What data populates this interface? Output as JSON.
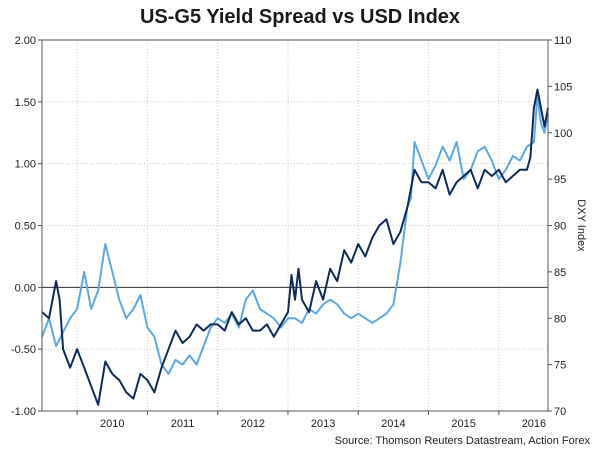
{
  "chart_data": {
    "type": "line",
    "title": "US-G5 Yield Spread vs USD Index",
    "source": "Source: Thomson Reuters Datastream, Action Forex",
    "x_tick_labels": [
      "2010",
      "2011",
      "2012",
      "2013",
      "2014",
      "2015",
      "2016"
    ],
    "xlim": [
      2009.5,
      2016.7
    ],
    "y_left": {
      "label": "",
      "lim": [
        -1.0,
        2.0
      ],
      "ticks": [
        -1.0,
        -0.5,
        0.0,
        0.5,
        1.0,
        1.5,
        2.0
      ],
      "tick_labels": [
        "-1.00",
        "-0.50",
        "0.00",
        "0.50",
        "1.00",
        "1.50",
        "2.00"
      ]
    },
    "y_right": {
      "label": "DXY Index",
      "lim": [
        70,
        110
      ],
      "ticks": [
        70,
        75,
        80,
        85,
        90,
        95,
        100,
        105,
        110
      ],
      "tick_labels": [
        "70",
        "75",
        "80",
        "85",
        "90",
        "95",
        "100",
        "105",
        "110"
      ]
    },
    "grid": true,
    "series": [
      {
        "name": "",
        "axis": "left",
        "color": "#0d2b5a",
        "x": [
          2009.5,
          2009.6,
          2009.7,
          2009.75,
          2009.8,
          2009.9,
          2010.0,
          2010.1,
          2010.2,
          2010.3,
          2010.4,
          2010.5,
          2010.6,
          2010.7,
          2010.8,
          2010.9,
          2011.0,
          2011.1,
          2011.2,
          2011.3,
          2011.4,
          2011.5,
          2011.6,
          2011.7,
          2011.8,
          2011.9,
          2012.0,
          2012.1,
          2012.2,
          2012.3,
          2012.4,
          2012.5,
          2012.6,
          2012.7,
          2012.8,
          2012.9,
          2013.0,
          2013.05,
          2013.1,
          2013.15,
          2013.2,
          2013.3,
          2013.4,
          2013.5,
          2013.6,
          2013.7,
          2013.8,
          2013.9,
          2014.0,
          2014.1,
          2014.2,
          2014.3,
          2014.4,
          2014.5,
          2014.6,
          2014.7,
          2014.8,
          2014.9,
          2015.0,
          2015.1,
          2015.2,
          2015.3,
          2015.4,
          2015.5,
          2015.6,
          2015.7,
          2015.8,
          2015.9,
          2016.0,
          2016.1,
          2016.2,
          2016.3,
          2016.4,
          2016.45,
          2016.5,
          2016.55,
          2016.6,
          2016.65,
          2016.7
        ],
        "values": [
          -0.2,
          -0.25,
          0.05,
          -0.1,
          -0.5,
          -0.65,
          -0.5,
          -0.65,
          -0.8,
          -0.95,
          -0.6,
          -0.7,
          -0.75,
          -0.85,
          -0.9,
          -0.7,
          -0.75,
          -0.85,
          -0.65,
          -0.5,
          -0.35,
          -0.45,
          -0.4,
          -0.3,
          -0.35,
          -0.3,
          -0.3,
          -0.35,
          -0.2,
          -0.3,
          -0.25,
          -0.35,
          -0.35,
          -0.3,
          -0.4,
          -0.3,
          -0.2,
          0.1,
          -0.1,
          0.15,
          -0.1,
          -0.2,
          0.05,
          -0.1,
          0.15,
          0.05,
          0.3,
          0.2,
          0.35,
          0.25,
          0.4,
          0.5,
          0.55,
          0.35,
          0.45,
          0.65,
          0.95,
          0.85,
          0.85,
          0.8,
          0.95,
          0.75,
          0.85,
          0.9,
          0.95,
          0.8,
          0.95,
          0.9,
          0.95,
          0.85,
          0.9,
          0.95,
          0.95,
          1.05,
          1.45,
          1.6,
          1.45,
          1.3,
          1.45
        ]
      },
      {
        "name": "",
        "axis": "right",
        "color": "#5aa9e6",
        "x": [
          2009.5,
          2009.6,
          2009.7,
          2009.8,
          2009.9,
          2010.0,
          2010.1,
          2010.2,
          2010.3,
          2010.4,
          2010.5,
          2010.6,
          2010.7,
          2010.8,
          2010.9,
          2011.0,
          2011.1,
          2011.2,
          2011.3,
          2011.4,
          2011.5,
          2011.6,
          2011.7,
          2011.8,
          2011.9,
          2012.0,
          2012.1,
          2012.2,
          2012.3,
          2012.4,
          2012.5,
          2012.6,
          2012.7,
          2012.8,
          2012.9,
          2013.0,
          2013.1,
          2013.2,
          2013.3,
          2013.4,
          2013.5,
          2013.6,
          2013.7,
          2013.8,
          2013.9,
          2014.0,
          2014.1,
          2014.2,
          2014.3,
          2014.4,
          2014.5,
          2014.6,
          2014.7,
          2014.75,
          2014.8,
          2014.9,
          2015.0,
          2015.1,
          2015.2,
          2015.3,
          2015.4,
          2015.5,
          2015.6,
          2015.7,
          2015.8,
          2015.9,
          2016.0,
          2016.1,
          2016.2,
          2016.3,
          2016.4,
          2016.5,
          2016.55,
          2016.6,
          2016.65,
          2016.7
        ],
        "values": [
          78,
          80,
          77,
          78.5,
          80,
          81,
          85,
          81,
          83,
          88,
          85,
          82,
          80,
          81,
          82.5,
          79,
          78,
          75,
          74,
          75.5,
          75,
          76,
          75,
          77,
          79,
          80,
          79.5,
          80.5,
          79,
          82,
          83,
          81,
          80.5,
          80,
          79,
          80,
          80,
          79.5,
          81,
          80.5,
          81.5,
          82,
          81.5,
          80.5,
          80,
          80.5,
          80,
          79.5,
          80,
          80.5,
          81.5,
          86,
          92,
          93,
          99,
          97,
          95,
          96.5,
          98.5,
          97,
          99,
          95,
          96,
          98,
          98.5,
          97,
          95,
          96,
          97.5,
          97,
          98.5,
          99,
          104,
          101,
          100,
          102
        ]
      }
    ]
  }
}
